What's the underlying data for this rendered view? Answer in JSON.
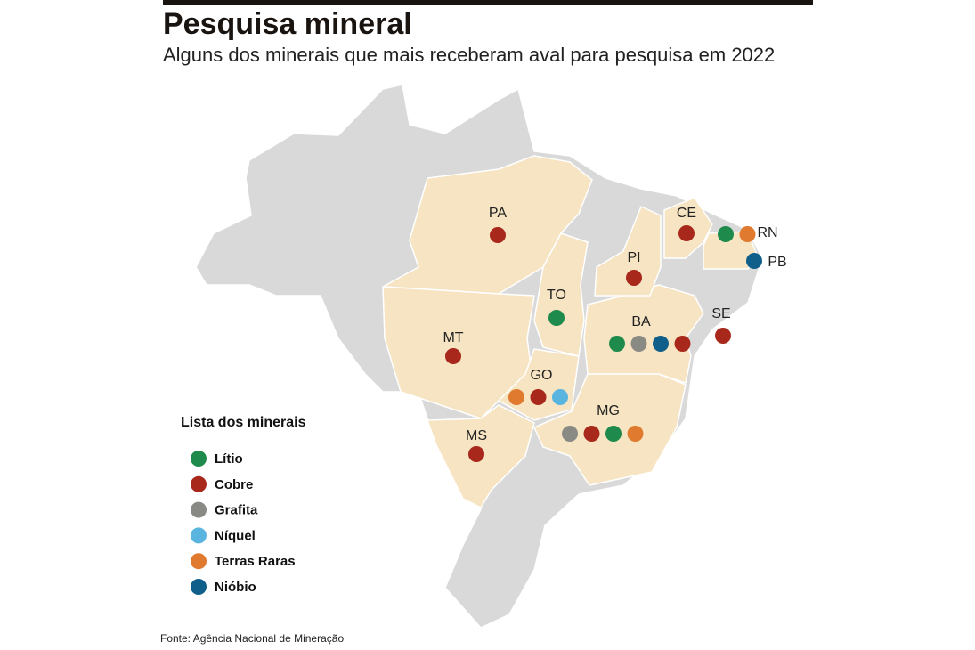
{
  "header": {
    "title": "Pesquisa mineral",
    "subtitle": "Alguns dos minerais que mais receberam aval para pesquisa em 2022"
  },
  "legend": {
    "title": "Lista dos minerais",
    "items": [
      {
        "label": "Lítio",
        "color": "#1e8a4c"
      },
      {
        "label": "Cobre",
        "color": "#a9281c"
      },
      {
        "label": "Grafita",
        "color": "#8a8a84"
      },
      {
        "label": "Níquel",
        "color": "#5ab4e0"
      },
      {
        "label": "Terras Raras",
        "color": "#e07a2e"
      },
      {
        "label": "Nióbio",
        "color": "#0f5f8a"
      }
    ]
  },
  "states": [
    {
      "label": "PA",
      "minerals": [
        "Cobre"
      ]
    },
    {
      "label": "CE",
      "minerals": [
        "Cobre"
      ]
    },
    {
      "label": "RN",
      "minerals": [
        "Lítio",
        "Terras Raras"
      ]
    },
    {
      "label": "PB",
      "minerals": [
        "Nióbio"
      ]
    },
    {
      "label": "PI",
      "minerals": [
        "Cobre"
      ]
    },
    {
      "label": "TO",
      "minerals": [
        "Lítio"
      ]
    },
    {
      "label": "BA",
      "minerals": [
        "Lítio",
        "Grafita",
        "Nióbio",
        "Cobre"
      ]
    },
    {
      "label": "SE",
      "minerals": [
        "Cobre"
      ]
    },
    {
      "label": "MT",
      "minerals": [
        "Cobre"
      ]
    },
    {
      "label": "GO",
      "minerals": [
        "Terras Raras",
        "Cobre",
        "Níquel"
      ]
    },
    {
      "label": "MG",
      "minerals": [
        "Grafita",
        "Cobre",
        "Lítio",
        "Terras Raras"
      ]
    },
    {
      "label": "MS",
      "minerals": [
        "Cobre"
      ]
    }
  ],
  "source": "Fonte: Agência Nacional de Mineração"
}
